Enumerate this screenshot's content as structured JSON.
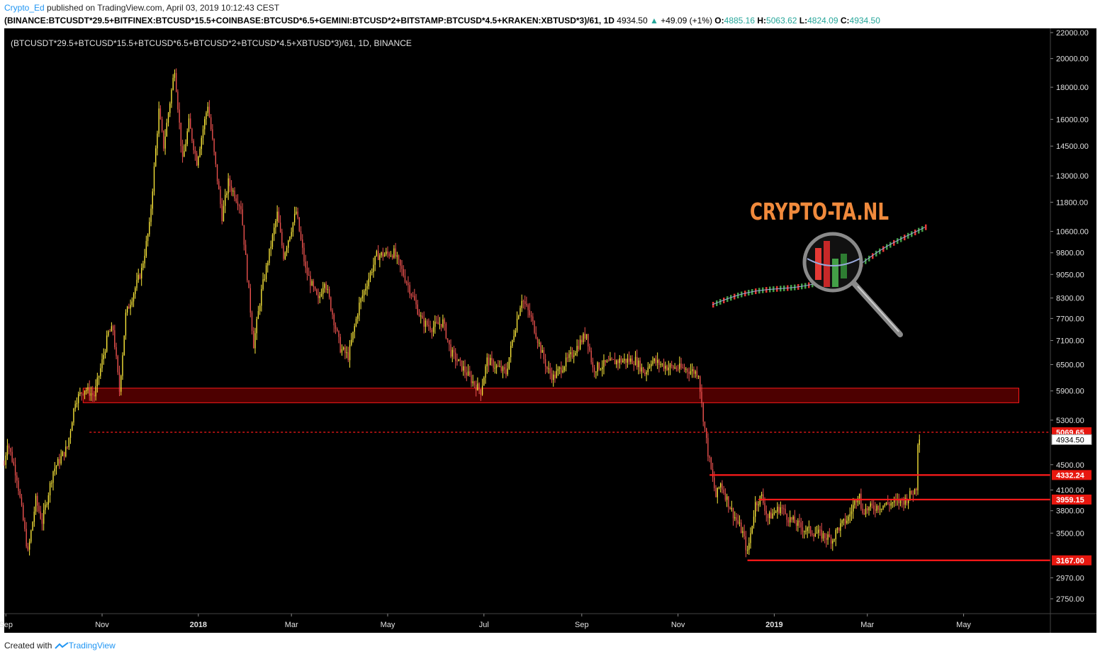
{
  "header": {
    "author": "Crypto_Ed",
    "published_text": "published on TradingView.com, April 03, 2019 10:12:43 CEST",
    "symbol": "(BINANCE:BTCUSDT*29.5+BITFINEX:BTCUSD*15.5+COINBASE:BTCUSD*6.5+GEMINI:BTCUSD*2+BITSTAMP:BTCUSD*4.5+KRAKEN:XBTUSD*3)/61, 1D",
    "last": "4934.50",
    "change_arrow": "▲",
    "change": "+49.09 (+1%)",
    "open_label": "O:",
    "open": "4885.16",
    "high_label": "H:",
    "high": "5063.62",
    "low_label": "L:",
    "low": "4824.09",
    "close_label": "C:",
    "close": "4934.50"
  },
  "footer": {
    "created_with": "Created with",
    "brand": "TradingView"
  },
  "colors": {
    "background": "#000000",
    "bull": "#ffeb3b",
    "bear": "#ef5350",
    "zone_fill": "#5a0000",
    "zone_stroke": "#ff1a1a",
    "level": "#ff1a1a",
    "axis_text": "#e0e0e0",
    "logo_text": "#f08a3c"
  },
  "chart_data": {
    "type": "candlestick",
    "title": "(BTCUSDT*29.5+BTCUSD*15.5+BTCUSD*6.5+BTCUSD*2+BTCUSD*4.5+XBTUSD*3)/61, 1D, BINANCE",
    "y_scale": "log",
    "ylim": [
      2600,
      22200
    ],
    "xlim": [
      "2017-08-31",
      "2019-06-25"
    ],
    "y_ticks": [
      2750,
      2970,
      3500,
      3800,
      4100,
      4500,
      5300,
      5900,
      6500,
      7100,
      7700,
      8300,
      9050,
      9800,
      10600,
      11800,
      13000,
      14500,
      16000,
      18000,
      20000,
      22000
    ],
    "y_tick_labels": [
      "2750.00",
      "2970.00",
      "3500.00",
      "3800.00",
      "4100.00",
      "4500.00",
      "5300.00",
      "5900.00",
      "6500.00",
      "7100.00",
      "7700.00",
      "8300.00",
      "9050.00",
      "9800.00",
      "10600.00",
      "11800.00",
      "13000.00",
      "14500.00",
      "16000.00",
      "18000.00",
      "20000.00",
      "22000.00"
    ],
    "x_ticks": [
      {
        "date": "2017-09-01",
        "label": "Sep",
        "bold": false
      },
      {
        "date": "2017-11-01",
        "label": "Nov",
        "bold": false
      },
      {
        "date": "2018-01-01",
        "label": "2018",
        "bold": true
      },
      {
        "date": "2018-03-01",
        "label": "Mar",
        "bold": false
      },
      {
        "date": "2018-05-01",
        "label": "May",
        "bold": false
      },
      {
        "date": "2018-07-01",
        "label": "Jul",
        "bold": false
      },
      {
        "date": "2018-09-01",
        "label": "Sep",
        "bold": false
      },
      {
        "date": "2018-11-01",
        "label": "Nov",
        "bold": false
      },
      {
        "date": "2019-01-01",
        "label": "2019",
        "bold": true
      },
      {
        "date": "2019-03-01",
        "label": "Mar",
        "bold": false
      },
      {
        "date": "2019-05-01",
        "label": "May",
        "bold": false
      }
    ],
    "anchors": [
      [
        "2017-08-31",
        4500
      ],
      [
        "2017-09-02",
        4900
      ],
      [
        "2017-09-08",
        4300
      ],
      [
        "2017-09-15",
        3250
      ],
      [
        "2017-09-20",
        3950
      ],
      [
        "2017-09-24",
        3650
      ],
      [
        "2017-10-01",
        4400
      ],
      [
        "2017-10-10",
        4800
      ],
      [
        "2017-10-15",
        5700
      ],
      [
        "2017-10-21",
        5950
      ],
      [
        "2017-10-27",
        5800
      ],
      [
        "2017-10-31",
        6400
      ],
      [
        "2017-11-05",
        7300
      ],
      [
        "2017-11-08",
        7400
      ],
      [
        "2017-11-12",
        5900
      ],
      [
        "2017-11-16",
        7800
      ],
      [
        "2017-11-26",
        9200
      ],
      [
        "2017-12-01",
        10800
      ],
      [
        "2017-12-07",
        16500
      ],
      [
        "2017-12-10",
        14500
      ],
      [
        "2017-12-17",
        19300
      ],
      [
        "2017-12-22",
        13700
      ],
      [
        "2017-12-26",
        15800
      ],
      [
        "2017-12-31",
        13700
      ],
      [
        "2018-01-07",
        16900
      ],
      [
        "2018-01-16",
        11200
      ],
      [
        "2018-01-20",
        12700
      ],
      [
        "2018-01-28",
        11600
      ],
      [
        "2018-02-05",
        7000
      ],
      [
        "2018-02-10",
        8500
      ],
      [
        "2018-02-20",
        11300
      ],
      [
        "2018-02-24",
        9700
      ],
      [
        "2018-03-04",
        11400
      ],
      [
        "2018-03-10",
        9200
      ],
      [
        "2018-03-18",
        8200
      ],
      [
        "2018-03-22",
        8900
      ],
      [
        "2018-04-01",
        6900
      ],
      [
        "2018-04-06",
        6700
      ],
      [
        "2018-04-13",
        8100
      ],
      [
        "2018-04-24",
        9700
      ],
      [
        "2018-05-05",
        9800
      ],
      [
        "2018-05-14",
        8700
      ],
      [
        "2018-05-23",
        7600
      ],
      [
        "2018-05-29",
        7450
      ],
      [
        "2018-06-05",
        7600
      ],
      [
        "2018-06-10",
        6800
      ],
      [
        "2018-06-16",
        6500
      ],
      [
        "2018-06-24",
        6100
      ],
      [
        "2018-06-29",
        5900
      ],
      [
        "2018-07-03",
        6600
      ],
      [
        "2018-07-15",
        6300
      ],
      [
        "2018-07-20",
        7300
      ],
      [
        "2018-07-25",
        8300
      ],
      [
        "2018-07-31",
        7700
      ],
      [
        "2018-08-05",
        7000
      ],
      [
        "2018-08-10",
        6400
      ],
      [
        "2018-08-14",
        6200
      ],
      [
        "2018-08-25",
        6700
      ],
      [
        "2018-09-04",
        7300
      ],
      [
        "2018-09-08",
        6400
      ],
      [
        "2018-09-15",
        6500
      ],
      [
        "2018-09-25",
        6600
      ],
      [
        "2018-10-05",
        6600
      ],
      [
        "2018-10-11",
        6300
      ],
      [
        "2018-10-15",
        6600
      ],
      [
        "2018-10-25",
        6450
      ],
      [
        "2018-11-05",
        6400
      ],
      [
        "2018-11-14",
        6300
      ],
      [
        "2018-11-16",
        5600
      ],
      [
        "2018-11-20",
        4700
      ],
      [
        "2018-11-25",
        4000
      ],
      [
        "2018-11-28",
        4200
      ],
      [
        "2018-12-05",
        3800
      ],
      [
        "2018-12-12",
        3500
      ],
      [
        "2018-12-15",
        3250
      ],
      [
        "2018-12-20",
        3900
      ],
      [
        "2018-12-24",
        4000
      ],
      [
        "2018-12-28",
        3700
      ],
      [
        "2019-01-05",
        3850
      ],
      [
        "2019-01-10",
        3700
      ],
      [
        "2019-01-20",
        3550
      ],
      [
        "2019-01-28",
        3500
      ],
      [
        "2019-02-07",
        3420
      ],
      [
        "2019-02-10",
        3550
      ],
      [
        "2019-02-17",
        3700
      ],
      [
        "2019-02-24",
        4100
      ],
      [
        "2019-02-25",
        3800
      ],
      [
        "2019-03-05",
        3850
      ],
      [
        "2019-03-15",
        3900
      ],
      [
        "2019-03-25",
        3950
      ],
      [
        "2019-03-31",
        4100
      ],
      [
        "2019-04-01",
        4150
      ],
      [
        "2019-04-02",
        4900
      ],
      [
        "2019-04-03",
        4934.5
      ]
    ],
    "zone": {
      "low": 5650,
      "high": 5960,
      "from": "2017-10-20",
      "to": "2019-06-05"
    },
    "levels": [
      {
        "value": 5069.65,
        "label": "5069.65",
        "from": "2017-10-24",
        "style": "dashed"
      },
      {
        "value": 4332.24,
        "label": "4332.24",
        "from": "2018-11-21",
        "style": "solid"
      },
      {
        "value": 3959.15,
        "label": "3959.15",
        "from": "2018-12-22",
        "style": "solid"
      },
      {
        "value": 3167.0,
        "label": "3167.00",
        "from": "2018-12-15",
        "style": "solid"
      }
    ],
    "last_price": {
      "value": 4934.5,
      "label": "4934.50"
    }
  },
  "logo": {
    "text": "CRYPTO-TA.NL"
  }
}
